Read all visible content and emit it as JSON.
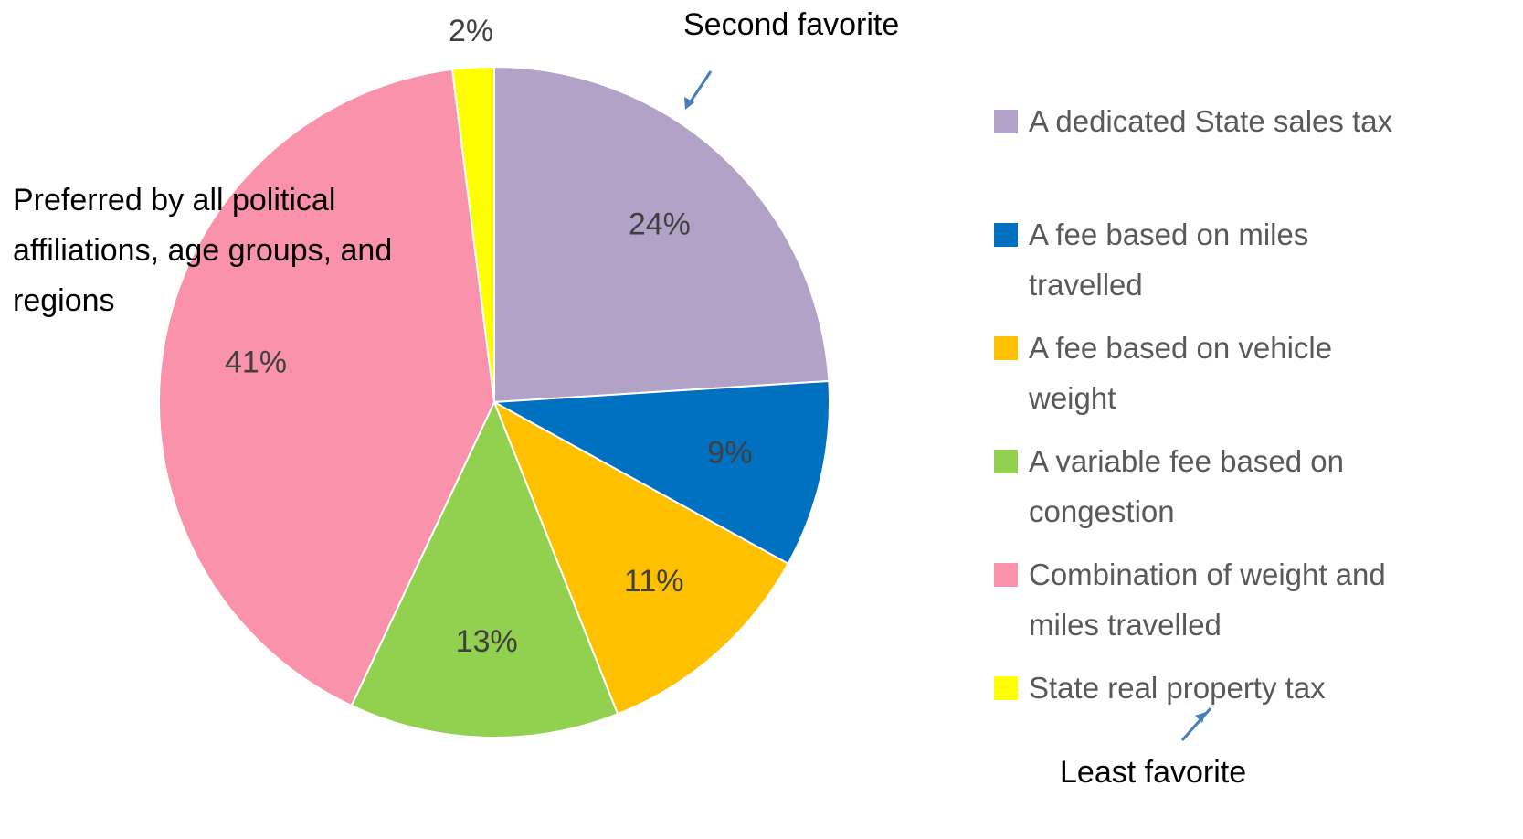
{
  "chart_data": {
    "type": "pie",
    "categories": [
      "A dedicated State sales tax",
      "A fee based on miles travelled",
      "A fee based on vehicle weight",
      "A variable fee based on congestion",
      "Combination of weight and miles travelled",
      "State real property tax"
    ],
    "values": [
      24,
      9,
      11,
      13,
      41,
      2
    ],
    "value_labels": [
      "24%",
      "9%",
      "11%",
      "13%",
      "41%",
      "2%"
    ],
    "colors": [
      "#b3a2c7",
      "#0070c0",
      "#ffc000",
      "#92d050",
      "#f992aa",
      "#ffff00"
    ],
    "legend": "right",
    "annotations": [
      "Second favorite",
      "Preferred by all political affiliations, age groups, and regions",
      "Least favorite"
    ]
  }
}
